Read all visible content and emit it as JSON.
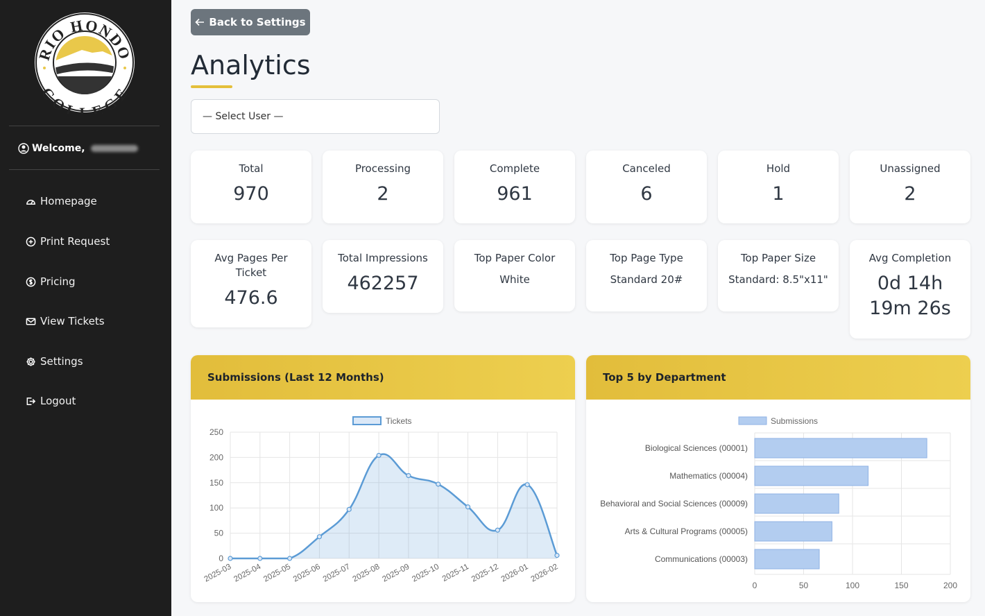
{
  "sidebar": {
    "logo_alt": "Rio Hondo College logo",
    "logo_text_top": "RIO HONDO",
    "logo_text_bottom": "COLLEGE",
    "welcome_label": "Welcome,",
    "items": [
      {
        "label": "Homepage",
        "icon": "dashboard-icon"
      },
      {
        "label": "Print Request",
        "icon": "plus-circle-icon"
      },
      {
        "label": "Pricing",
        "icon": "dollar-circle-icon"
      },
      {
        "label": "View Tickets",
        "icon": "envelope-icon"
      },
      {
        "label": "Settings",
        "icon": "gear-icon"
      },
      {
        "label": "Logout",
        "icon": "logout-icon"
      }
    ]
  },
  "main": {
    "back_label": "Back to Settings",
    "title": "Analytics",
    "user_select": "— Select User —",
    "stats_row1": [
      {
        "label": "Total",
        "value": "970"
      },
      {
        "label": "Processing",
        "value": "2"
      },
      {
        "label": "Complete",
        "value": "961"
      },
      {
        "label": "Canceled",
        "value": "6"
      },
      {
        "label": "Hold",
        "value": "1"
      },
      {
        "label": "Unassigned",
        "value": "2"
      }
    ],
    "stats_row2": [
      {
        "label": "Avg Pages Per Ticket",
        "value": "476.6"
      },
      {
        "label": "Total Impressions",
        "value": "462257"
      },
      {
        "label": "Top Paper Color",
        "value": "White"
      },
      {
        "label": "Top Page Type",
        "value": "Standard 20#"
      },
      {
        "label": "Top Paper Size",
        "value": "Standard: 8.5\"x11\""
      },
      {
        "label": "Avg Completion",
        "value_line1": "0d 14h",
        "value_line2": "19m 26s"
      }
    ],
    "submissions_title": "Submissions (Last 12 Months)",
    "department_title": "Top 5 by Department"
  },
  "colors": {
    "accent": "#e4bf3a",
    "line": "#5b9bd5",
    "bar_fill": "#b3cdf0",
    "bar_stroke": "#8fb2e4",
    "sidebar": "#1e1e1e"
  },
  "chart_data": [
    {
      "type": "area",
      "title": "Submissions (Last 12 Months)",
      "legend": "top",
      "x": [
        "2025-03",
        "2025-04",
        "2025-05",
        "2025-06",
        "2025-07",
        "2025-08",
        "2025-09",
        "2025-10",
        "2025-11",
        "2025-12",
        "2026-01",
        "2026-02"
      ],
      "series": [
        {
          "name": "Tickets",
          "values": [
            0,
            0,
            0,
            43,
            97,
            204,
            164,
            147,
            102,
            56,
            146,
            6
          ]
        }
      ],
      "ylim": [
        0,
        250
      ],
      "yticks": [
        0,
        50,
        100,
        150,
        200,
        250
      ],
      "grid": true
    },
    {
      "type": "bar",
      "orientation": "horizontal",
      "title": "Top 5 by Department",
      "legend": "top",
      "categories": [
        "Biological Sciences (00001)",
        "Mathematics (00004)",
        "Behavioral and Social Sciences (00009)",
        "Arts & Cultural Programs (00005)",
        "Communications (00003)"
      ],
      "series": [
        {
          "name": "Submissions",
          "values": [
            176,
            116,
            86,
            79,
            66
          ]
        }
      ],
      "xlim": [
        0,
        200
      ],
      "xticks": [
        0,
        50,
        100,
        150,
        200
      ],
      "grid": true
    }
  ]
}
